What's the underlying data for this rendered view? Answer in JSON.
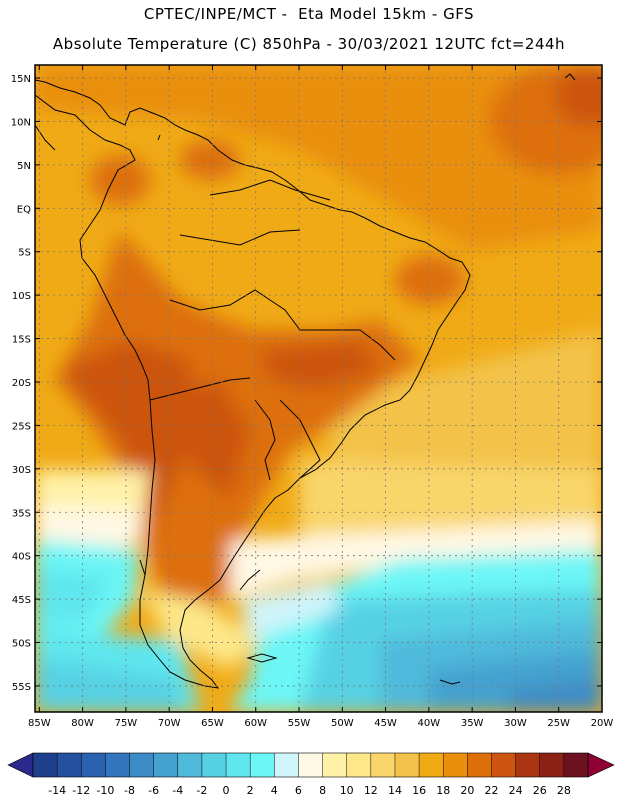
{
  "title_line1": "CPTEC/INPE/MCT -  Eta Model 15km - GFS",
  "title_line2": "Absolute Temperature (C) 850hPa - 30/03/2021 12UTC fct=244h",
  "lat_labels": [
    "15N",
    "10N",
    "5N",
    "EQ",
    "5S",
    "10S",
    "15S",
    "20S",
    "25S",
    "30S",
    "35S",
    "40S",
    "45S",
    "50S",
    "55S"
  ],
  "lat_values": [
    15,
    10,
    5,
    0,
    -5,
    -10,
    -15,
    -20,
    -25,
    -30,
    -35,
    -40,
    -45,
    -50,
    -55
  ],
  "lon_labels": [
    "85W",
    "80W",
    "75W",
    "70W",
    "65W",
    "60W",
    "55W",
    "50W",
    "45W",
    "40W",
    "35W",
    "30W",
    "25W",
    "20W"
  ],
  "lon_values": [
    -85,
    -80,
    -75,
    -70,
    -65,
    -60,
    -55,
    -50,
    -45,
    -40,
    -35,
    -30,
    -25,
    -20
  ],
  "extent": {
    "lon_min": -85.5,
    "lon_max": -20,
    "lat_min": -58,
    "lat_max": 16.5
  },
  "colorbar": {
    "labels": [
      "-14",
      "-12",
      "-10",
      "-8",
      "-6",
      "-4",
      "-2",
      "0",
      "2",
      "4",
      "6",
      "8",
      "10",
      "12",
      "14",
      "16",
      "18",
      "20",
      "22",
      "24",
      "26",
      "28"
    ],
    "colors": [
      "#1e3f8c",
      "#24509f",
      "#2a62b0",
      "#3476bd",
      "#3c8bc6",
      "#45a1cf",
      "#4fbadb",
      "#56d1e4",
      "#5fe6ee",
      "#6cf6f6",
      "#cff4fb",
      "#fff8e4",
      "#fff2a8",
      "#fde788",
      "#f9d56a",
      "#f3c24a",
      "#f0aa16",
      "#e98f0c",
      "#dd6f0b",
      "#cc5511",
      "#aa3512",
      "#8a2114",
      "#6d1120"
    ],
    "low_arrow_color": "#2a2a8c",
    "high_arrow_color": "#8f0035"
  }
}
